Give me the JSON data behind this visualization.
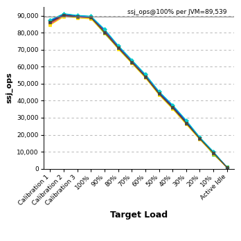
{
  "x_labels": [
    "Calibration 1",
    "Calibration 2",
    "Calibration 3",
    "100%",
    "90%",
    "80%",
    "70%",
    "60%",
    "50%",
    "40%",
    "30%",
    "20%",
    "10%",
    "Active Idle"
  ],
  "reference_line": 89539,
  "reference_label": "ssj_ops@100% per JVM=89,539",
  "xlabel": "Target Load",
  "ylabel": "ssj_ops",
  "ylim": [
    0,
    95000
  ],
  "yticks": [
    0,
    10000,
    20000,
    30000,
    40000,
    50000,
    60000,
    70000,
    80000,
    90000
  ],
  "series": [
    {
      "color": "#ff0000",
      "marker": "s",
      "values": [
        86500,
        90500,
        89500,
        89000,
        81000,
        71500,
        63000,
        54500,
        44500,
        36500,
        27500,
        18000,
        9500,
        800
      ]
    },
    {
      "color": "#00cc00",
      "marker": "s",
      "values": [
        86000,
        90200,
        89300,
        88800,
        79500,
        71000,
        62500,
        54000,
        44000,
        36000,
        27000,
        17800,
        8500,
        900
      ]
    },
    {
      "color": "#0000ff",
      "marker": "^",
      "values": [
        87000,
        91000,
        90000,
        89500,
        81500,
        72000,
        63500,
        55000,
        45000,
        37000,
        28000,
        18200,
        9800,
        750
      ]
    },
    {
      "color": "#ff8800",
      "marker": "v",
      "values": [
        85500,
        90000,
        89200,
        88700,
        80500,
        71200,
        62800,
        54200,
        44200,
        35800,
        26800,
        17600,
        9200,
        700
      ]
    },
    {
      "color": "#cc00cc",
      "marker": "o",
      "values": [
        85000,
        89700,
        89000,
        88400,
        80000,
        70800,
        62300,
        53800,
        43800,
        35500,
        26500,
        17400,
        9000,
        650
      ]
    },
    {
      "color": "#00cccc",
      "marker": "D",
      "values": [
        87500,
        91200,
        90200,
        89700,
        82000,
        72500,
        64000,
        55500,
        45500,
        37500,
        28500,
        18500,
        10000,
        850
      ]
    },
    {
      "color": "#ffdd00",
      "marker": "s",
      "values": [
        84500,
        89500,
        88800,
        88200,
        79800,
        70500,
        62000,
        53500,
        43500,
        35200,
        26200,
        17200,
        8800,
        600
      ]
    },
    {
      "color": "#444444",
      "marker": "s",
      "values": [
        86200,
        90300,
        89400,
        88900,
        80200,
        71100,
        62600,
        54100,
        44100,
        35900,
        26900,
        17700,
        9300,
        780
      ]
    }
  ],
  "bg_color": "#ffffff",
  "grid_color": "#aaaaaa",
  "ref_line_color": "#888888",
  "font_family": "DejaVu Sans",
  "ylabel_fontsize": 8,
  "xlabel_fontsize": 9,
  "tick_fontsize": 6.5,
  "ref_fontsize": 6.5
}
